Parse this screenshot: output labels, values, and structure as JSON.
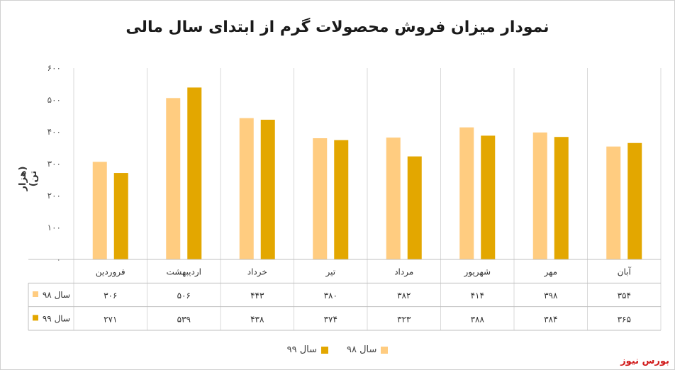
{
  "chart_data": {
    "type": "bar",
    "title": "نمودار میزان فروش محصولات گرم از ابتدای سال مالی",
    "ylabel": "(هزار تن)",
    "categories": [
      "فروردین",
      "اردیبهشت",
      "خرداد",
      "تیر",
      "مرداد",
      "شهریور",
      "مهر",
      "آبان"
    ],
    "y_ticks": [
      "۰",
      "۱۰۰",
      "۲۰۰",
      "۳۰۰",
      "۴۰۰",
      "۵۰۰",
      "۶۰۰"
    ],
    "ylim": [
      0,
      600
    ],
    "grid": true,
    "series": [
      {
        "name": "سال ۹۸",
        "color": "#FFCC80",
        "values": [
          306,
          506,
          443,
          380,
          382,
          414,
          398,
          354
        ],
        "labels": [
          "۳۰۶",
          "۵۰۶",
          "۴۴۳",
          "۳۸۰",
          "۳۸۲",
          "۴۱۴",
          "۳۹۸",
          "۳۵۴"
        ]
      },
      {
        "name": "سال ۹۹",
        "color": "#E3A700",
        "values": [
          271,
          539,
          438,
          374,
          323,
          388,
          384,
          365
        ],
        "labels": [
          "۲۷۱",
          "۵۳۹",
          "۴۳۸",
          "۳۷۴",
          "۳۲۳",
          "۳۸۸",
          "۳۸۴",
          "۳۶۵"
        ]
      }
    ]
  },
  "watermark": {
    "text": "بورس نیوز",
    "color": "#d11a1a"
  }
}
